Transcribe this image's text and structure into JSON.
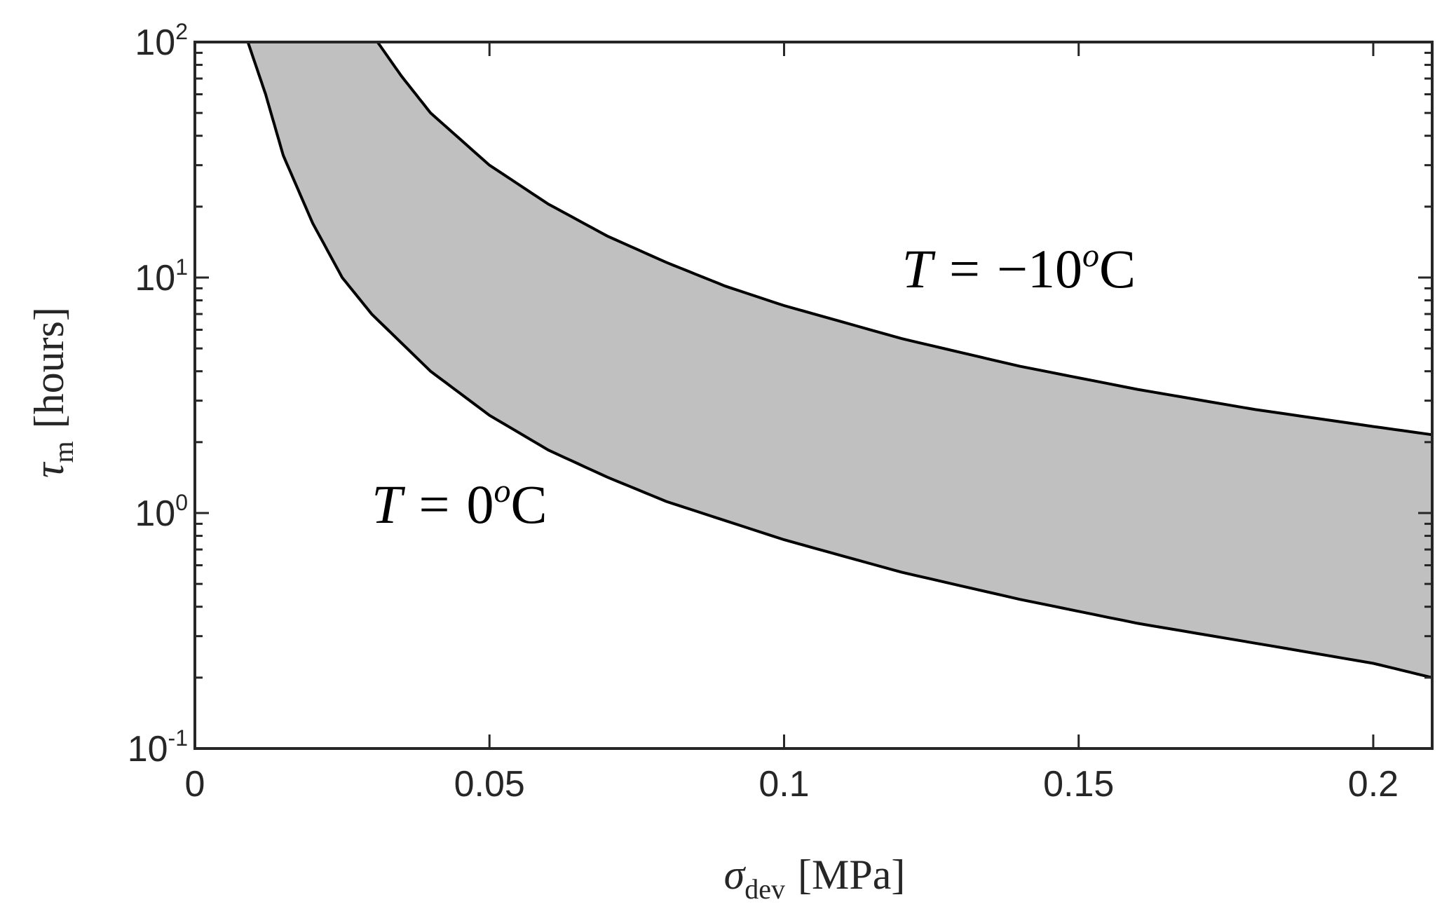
{
  "chart_data": {
    "type": "area",
    "x_axis": {
      "label_symbol": "σ",
      "label_subscript": "dev",
      "label_unit": "[MPa]",
      "range": [
        0,
        0.21
      ],
      "scale": "linear",
      "ticks": [
        0,
        0.05,
        0.1,
        0.15,
        0.2
      ],
      "tick_labels": [
        "0",
        "0.05",
        "0.1",
        "0.15",
        "0.2"
      ]
    },
    "y_axis": {
      "label_symbol": "τ",
      "label_subscript": "m",
      "label_unit": "[hours]",
      "range": [
        0.1,
        100
      ],
      "scale": "log",
      "ticks": [
        0.1,
        1,
        10,
        100
      ],
      "tick_labels": [
        {
          "base": "10",
          "exp": "-1"
        },
        {
          "base": "10",
          "exp": "0"
        },
        {
          "base": "10",
          "exp": "1"
        },
        {
          "base": "10",
          "exp": "2"
        }
      ]
    },
    "grid": false,
    "box": true,
    "fill_color": "#c0c0c0",
    "line_color": "#000000",
    "series": [
      {
        "id": "upper",
        "x": [
          0.031,
          0.035,
          0.04,
          0.05,
          0.06,
          0.07,
          0.08,
          0.09,
          0.1,
          0.12,
          0.14,
          0.16,
          0.18,
          0.2,
          0.21
        ],
        "y": [
          100,
          72,
          50,
          30,
          20.5,
          15.0,
          11.6,
          9.2,
          7.6,
          5.5,
          4.2,
          3.35,
          2.75,
          2.33,
          2.15
        ]
      },
      {
        "id": "lower",
        "x": [
          0.009,
          0.012,
          0.015,
          0.02,
          0.025,
          0.03,
          0.04,
          0.05,
          0.06,
          0.07,
          0.08,
          0.1,
          0.12,
          0.14,
          0.16,
          0.18,
          0.2,
          0.21
        ],
        "y": [
          100,
          60,
          33,
          17,
          10,
          7.0,
          4.0,
          2.6,
          1.85,
          1.42,
          1.12,
          0.77,
          0.56,
          0.43,
          0.34,
          0.28,
          0.23,
          0.2
        ]
      }
    ],
    "annotations": [
      {
        "id": "upper-label",
        "var": "T",
        "op": "=",
        "value": "−10",
        "sup": "o",
        "unit": "C",
        "x": 0.12,
        "y": 10
      },
      {
        "id": "lower-label",
        "var": "T",
        "op": "=",
        "value": "0",
        "sup": "o",
        "unit": "C",
        "x": 0.03,
        "y": 1
      }
    ]
  }
}
